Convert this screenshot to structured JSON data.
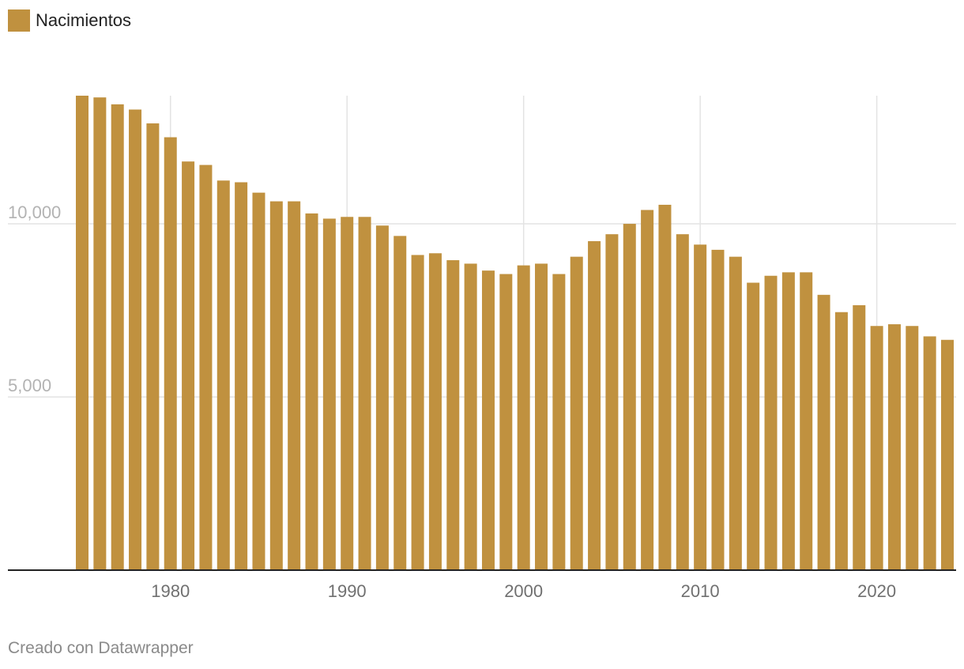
{
  "legend": {
    "label": "Nacimientos",
    "color": "#c0913f"
  },
  "footer": {
    "credit": "Creado con Datawrapper"
  },
  "chart_data": {
    "type": "bar",
    "xlabel": "",
    "ylabel": "",
    "ylim": [
      0,
      13700
    ],
    "grid": true,
    "legend_position": "top-left",
    "bar_color": "#c0913f",
    "y_ticks": [
      {
        "value": 5000,
        "label": "5,000"
      },
      {
        "value": 10000,
        "label": "10,000"
      }
    ],
    "x_ticks": [
      {
        "value": 1980,
        "label": "1980"
      },
      {
        "value": 1990,
        "label": "1990"
      },
      {
        "value": 2000,
        "label": "2000"
      },
      {
        "value": 2010,
        "label": "2010"
      },
      {
        "value": 2020,
        "label": "2020"
      }
    ],
    "categories": [
      1975,
      1976,
      1977,
      1978,
      1979,
      1980,
      1981,
      1982,
      1983,
      1984,
      1985,
      1986,
      1987,
      1988,
      1989,
      1990,
      1991,
      1992,
      1993,
      1994,
      1995,
      1996,
      1997,
      1998,
      1999,
      2000,
      2001,
      2002,
      2003,
      2004,
      2005,
      2006,
      2007,
      2008,
      2009,
      2010,
      2011,
      2012,
      2013,
      2014,
      2015,
      2016,
      2017,
      2018,
      2019,
      2020,
      2021,
      2022,
      2023,
      2024
    ],
    "series": [
      {
        "values": [
          13700,
          13650,
          13450,
          13300,
          12900,
          12500,
          11800,
          11700,
          11250,
          11200,
          10900,
          10650,
          10650,
          10300,
          10150,
          10200,
          10200,
          9950,
          9650,
          9100,
          9150,
          8950,
          8850,
          8650,
          8550,
          8800,
          8850,
          8550,
          9050,
          9500,
          9700,
          10000,
          10400,
          10550,
          9700,
          9400,
          9250,
          9050,
          8300,
          8500,
          8600,
          8600,
          7950,
          7450,
          7650,
          7050,
          7100,
          7050,
          6750,
          6650
        ]
      }
    ]
  }
}
